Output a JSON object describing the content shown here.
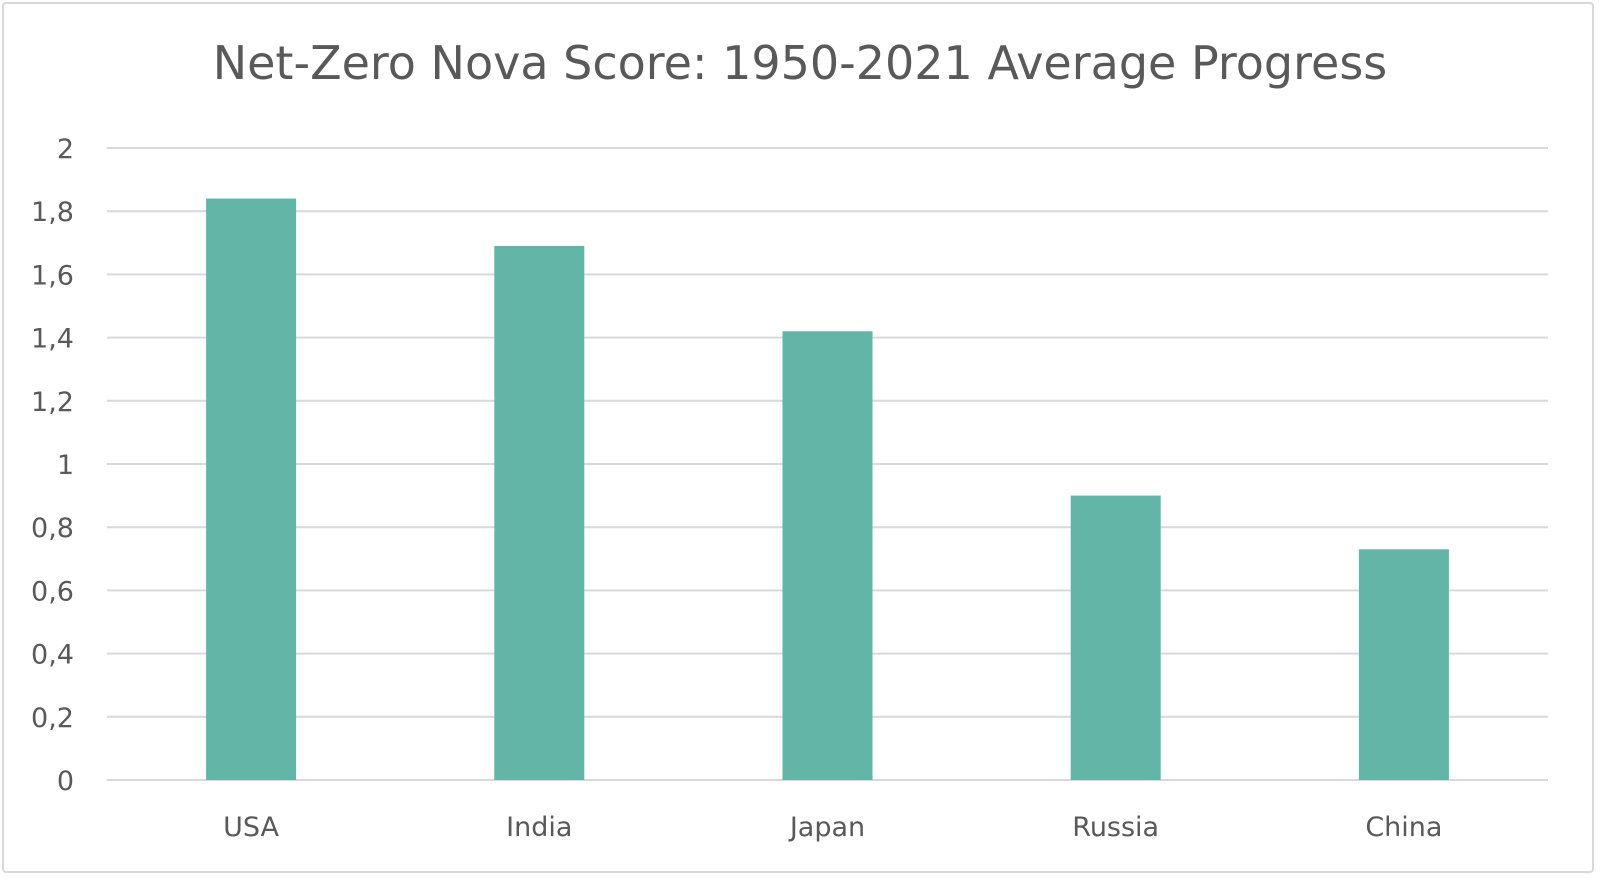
{
  "chart_data": {
    "type": "bar",
    "title": "Net-Zero Nova Score: 1950-2021 Average Progress",
    "xlabel": "",
    "ylabel": "",
    "categories": [
      "USA",
      "India",
      "Japan",
      "Russia",
      "China"
    ],
    "values": [
      1.84,
      1.69,
      1.42,
      0.9,
      0.73
    ],
    "ylim": [
      0,
      2
    ],
    "yticks": [
      "0",
      "0,2",
      "0,4",
      "0,6",
      "0,8",
      "1",
      "1,2",
      "1,4",
      "1,6",
      "1,8",
      "2"
    ],
    "grid": true,
    "legend": "none",
    "colors": {
      "bar": "#62b5a7",
      "grid": "#d9d9d9",
      "text": "#595959"
    }
  }
}
